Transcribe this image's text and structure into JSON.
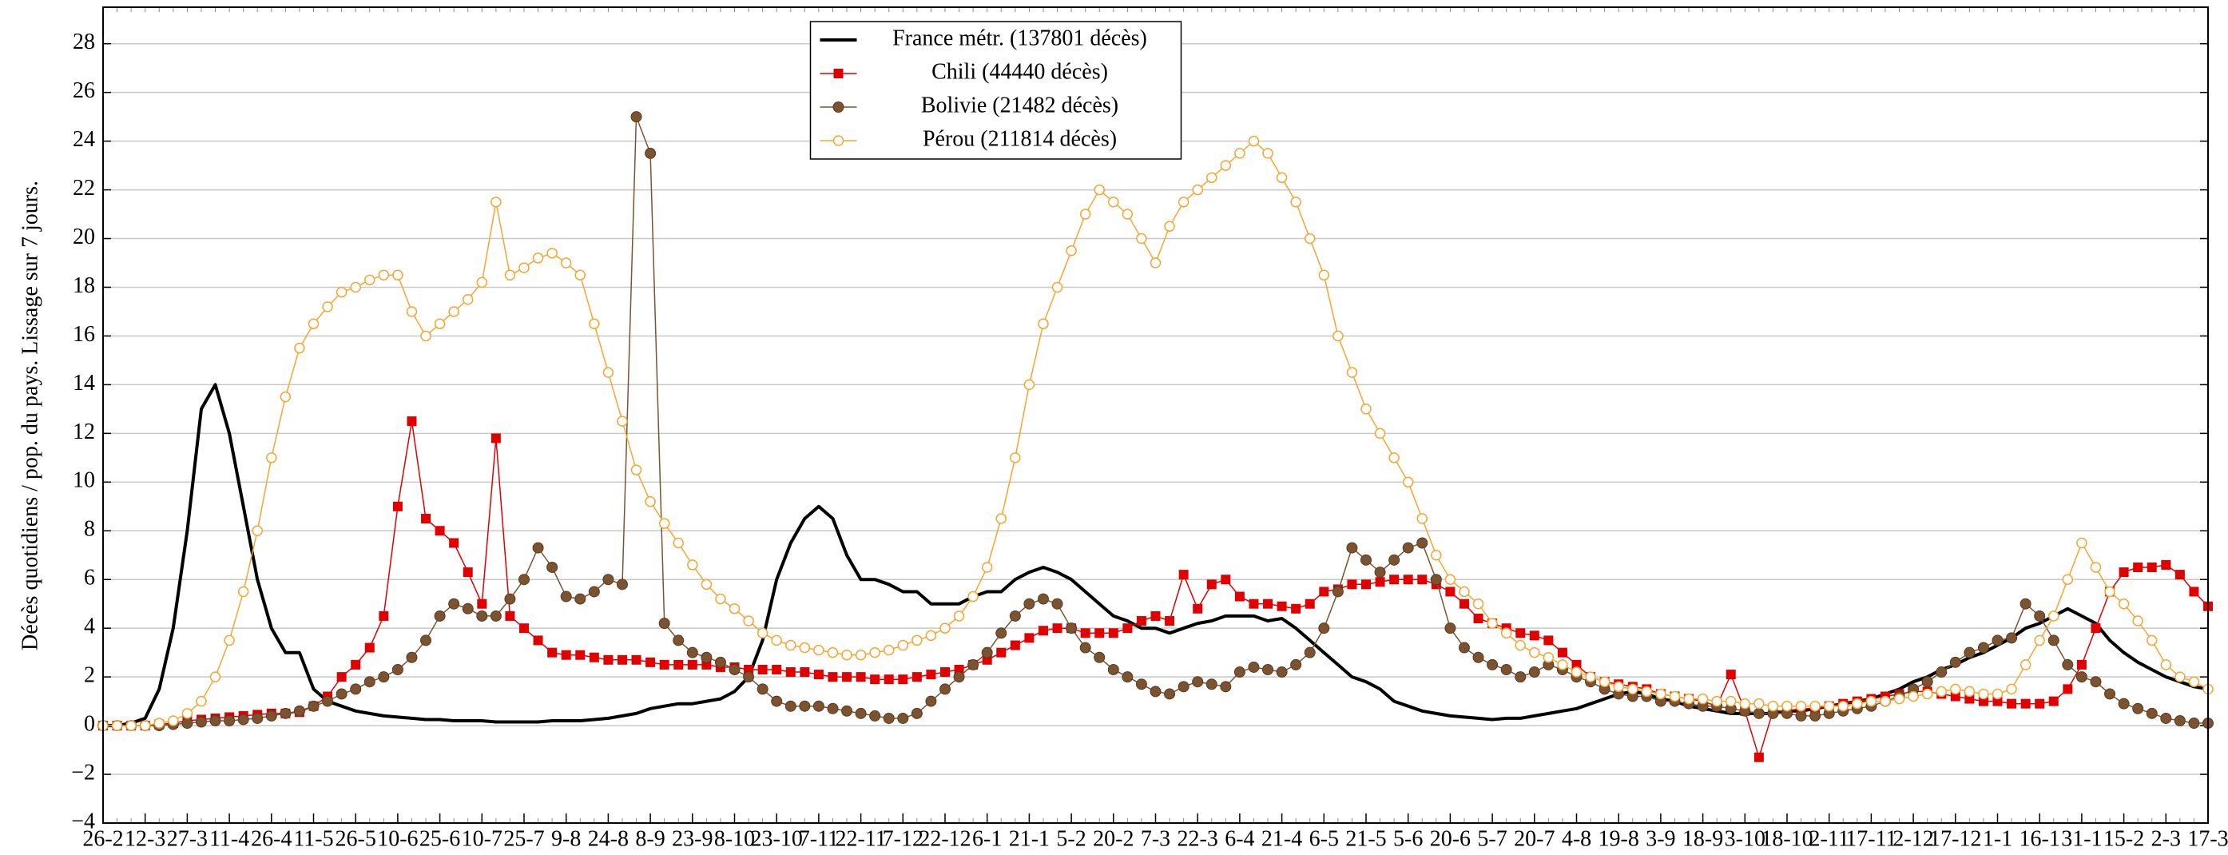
{
  "chart_data": {
    "type": "line",
    "y_label": "Décès quotidiens / pop. du pays. Lissage sur 7 jours.",
    "categories": [
      "26-2",
      null,
      null,
      "12-3",
      null,
      null,
      "27-3",
      null,
      null,
      "11-4",
      null,
      null,
      "26-4",
      null,
      null,
      "11-5",
      null,
      null,
      "26-5",
      null,
      null,
      "10-6",
      null,
      null,
      "25-6",
      null,
      null,
      "10-7",
      null,
      null,
      "25-7",
      null,
      null,
      "9-8",
      null,
      null,
      "24-8",
      null,
      null,
      "8-9",
      null,
      null,
      "23-9",
      null,
      null,
      "8-10",
      null,
      null,
      "23-10",
      null,
      null,
      "7-11",
      null,
      null,
      "22-11",
      null,
      null,
      "7-12",
      null,
      null,
      "22-12",
      null,
      null,
      "6-1",
      null,
      null,
      "21-1",
      null,
      null,
      "5-2",
      null,
      null,
      "20-2",
      null,
      null,
      "7-3",
      null,
      null,
      "22-3",
      null,
      null,
      "6-4",
      null,
      null,
      "21-4",
      null,
      null,
      "6-5",
      null,
      null,
      "21-5",
      null,
      null,
      "5-6",
      null,
      null,
      "20-6",
      null,
      null,
      "5-7",
      null,
      null,
      "20-7",
      null,
      null,
      "4-8",
      null,
      null,
      "19-8",
      null,
      null,
      "3-9",
      null,
      null,
      "18-9",
      null,
      null,
      "3-10",
      null,
      null,
      "18-10",
      null,
      null,
      "2-11",
      null,
      null,
      "17-11",
      null,
      null,
      "2-12",
      null,
      null,
      "17-12",
      null,
      null,
      "1-1",
      null,
      null,
      "16-1",
      null,
      null,
      "31-1",
      null,
      null,
      "15-2",
      null,
      null,
      "2-3",
      null,
      null,
      "17-3"
    ],
    "series": [
      {
        "name": "France métr. (137801 décès)",
        "color": "#000000",
        "marker": "none",
        "line_width": 4,
        "values": [
          0,
          0,
          0.1,
          0.3,
          1.5,
          4,
          8,
          13,
          14,
          12,
          9,
          6,
          4,
          3,
          3,
          1.5,
          1,
          0.8,
          0.6,
          0.5,
          0.4,
          0.35,
          0.3,
          0.25,
          0.25,
          0.2,
          0.2,
          0.2,
          0.15,
          0.15,
          0.15,
          0.15,
          0.2,
          0.2,
          0.2,
          0.25,
          0.3,
          0.4,
          0.5,
          0.7,
          0.8,
          0.9,
          0.9,
          1.0,
          1.1,
          1.4,
          2.0,
          3.5,
          6,
          7.5,
          8.5,
          9,
          8.5,
          7,
          6,
          6,
          5.8,
          5.5,
          5.5,
          5,
          5,
          5,
          5.3,
          5.5,
          5.5,
          6,
          6.3,
          6.5,
          6.3,
          6,
          5.5,
          5,
          4.5,
          4.3,
          4,
          4,
          3.8,
          4,
          4.2,
          4.3,
          4.5,
          4.5,
          4.5,
          4.3,
          4.4,
          4,
          3.5,
          3,
          2.5,
          2,
          1.8,
          1.5,
          1.0,
          0.8,
          0.6,
          0.5,
          0.4,
          0.35,
          0.3,
          0.25,
          0.3,
          0.3,
          0.4,
          0.5,
          0.6,
          0.7,
          0.9,
          1.1,
          1.3,
          1.4,
          1.3,
          1.1,
          1.0,
          0.8,
          0.7,
          0.6,
          0.5,
          0.5,
          0.5,
          0.5,
          0.6,
          0.6,
          0.7,
          0.8,
          0.9,
          1.0,
          1.1,
          1.3,
          1.5,
          1.8,
          2.0,
          2.3,
          2.5,
          2.8,
          3.0,
          3.3,
          3.6,
          4,
          4.2,
          4.5,
          4.8,
          4.5,
          4.2,
          3.5,
          3.0,
          2.6,
          2.3,
          2.0,
          1.8,
          1.6,
          1.5
        ]
      },
      {
        "name": "Chili (44440 décès)",
        "color": "#e00000",
        "marker": "square",
        "line_width": 1.5,
        "values": [
          0,
          0,
          0,
          0,
          0.05,
          0.1,
          0.2,
          0.25,
          0.3,
          0.35,
          0.4,
          0.45,
          0.5,
          0.5,
          0.55,
          0.8,
          1.2,
          2.0,
          2.5,
          3.2,
          4.5,
          9,
          12.5,
          8.5,
          8,
          7.5,
          6.3,
          5,
          11.8,
          4.5,
          4,
          3.5,
          3,
          2.9,
          2.9,
          2.8,
          2.7,
          2.7,
          2.7,
          2.6,
          2.5,
          2.5,
          2.5,
          2.5,
          2.4,
          2.4,
          2.3,
          2.3,
          2.3,
          2.2,
          2.2,
          2.1,
          2.0,
          2.0,
          2.0,
          1.9,
          1.9,
          1.9,
          2.0,
          2.1,
          2.2,
          2.3,
          2.5,
          2.7,
          3.0,
          3.3,
          3.6,
          3.9,
          4.0,
          4.0,
          3.8,
          3.8,
          3.8,
          4.0,
          4.3,
          4.5,
          4.3,
          6.2,
          4.8,
          5.8,
          6.0,
          5.3,
          5.0,
          5.0,
          4.9,
          4.8,
          5.0,
          5.5,
          5.6,
          5.8,
          5.8,
          5.9,
          6.0,
          6.0,
          6.0,
          5.8,
          5.5,
          5.0,
          4.4,
          4.2,
          4.0,
          3.8,
          3.7,
          3.5,
          3.0,
          2.5,
          2.0,
          1.8,
          1.7,
          1.6,
          1.5,
          1.3,
          1.2,
          1.1,
          1.0,
          0.8,
          2.1,
          0.6,
          -1.3,
          0.6,
          0.6,
          0.7,
          0.7,
          0.8,
          0.9,
          1.0,
          1.1,
          1.2,
          1.3,
          1.4,
          1.4,
          1.3,
          1.2,
          1.1,
          1.0,
          1.0,
          0.9,
          0.9,
          0.9,
          1.0,
          1.5,
          2.5,
          4,
          5.5,
          6.3,
          6.5,
          6.5,
          6.6,
          6.2,
          5.5,
          4.9
        ]
      },
      {
        "name": "Bolivie (21482 décès)",
        "color": "#7b5330",
        "marker": "circle",
        "line_width": 1.5,
        "values": [
          0,
          0,
          0,
          0,
          0,
          0.05,
          0.1,
          0.15,
          0.2,
          0.2,
          0.25,
          0.3,
          0.4,
          0.5,
          0.6,
          0.8,
          1.0,
          1.3,
          1.5,
          1.8,
          2.0,
          2.3,
          2.8,
          3.5,
          4.5,
          5.0,
          4.8,
          4.5,
          4.5,
          5.2,
          6.0,
          7.3,
          6.5,
          5.3,
          5.2,
          5.5,
          6.0,
          5.8,
          25.0,
          23.5,
          4.2,
          3.5,
          3.0,
          2.8,
          2.6,
          2.3,
          2.0,
          1.5,
          1.0,
          0.8,
          0.8,
          0.8,
          0.7,
          0.6,
          0.5,
          0.4,
          0.3,
          0.3,
          0.5,
          1.0,
          1.5,
          2.0,
          2.5,
          3.0,
          3.8,
          4.5,
          5.0,
          5.2,
          5.0,
          4.0,
          3.2,
          2.8,
          2.3,
          2.0,
          1.7,
          1.4,
          1.3,
          1.6,
          1.8,
          1.7,
          1.6,
          2.2,
          2.4,
          2.3,
          2.2,
          2.5,
          3.0,
          4.0,
          5.5,
          7.3,
          6.8,
          6.3,
          6.8,
          7.3,
          7.5,
          6.0,
          4.0,
          3.2,
          2.8,
          2.5,
          2.3,
          2.0,
          2.2,
          2.5,
          2.3,
          2.0,
          1.8,
          1.5,
          1.3,
          1.2,
          1.2,
          1.0,
          1.0,
          0.9,
          0.8,
          0.8,
          0.7,
          0.6,
          0.5,
          0.5,
          0.5,
          0.4,
          0.4,
          0.5,
          0.6,
          0.7,
          0.8,
          1.0,
          1.2,
          1.5,
          1.8,
          2.2,
          2.6,
          3.0,
          3.2,
          3.5,
          3.6,
          5.0,
          4.5,
          3.5,
          2.5,
          2.0,
          1.8,
          1.3,
          0.9,
          0.7,
          0.5,
          0.3,
          0.2,
          0.1,
          0.1
        ]
      },
      {
        "name": "Pérou (211814 décès)",
        "color": "#f7a531",
        "marker": "circle-open",
        "line_width": 1.5,
        "values": [
          0,
          0,
          0,
          0,
          0.1,
          0.2,
          0.5,
          1.0,
          2.0,
          3.5,
          5.5,
          8,
          11,
          13.5,
          15.5,
          16.5,
          17.2,
          17.8,
          18,
          18.3,
          18.5,
          18.5,
          17,
          16,
          16.5,
          17,
          17.5,
          18.2,
          21.5,
          18.5,
          18.8,
          19.2,
          19.4,
          19.0,
          18.5,
          16.5,
          14.5,
          12.5,
          10.5,
          9.2,
          8.3,
          7.5,
          6.6,
          5.8,
          5.2,
          4.8,
          4.3,
          3.8,
          3.5,
          3.3,
          3.2,
          3.1,
          3.0,
          2.9,
          2.9,
          3.0,
          3.1,
          3.3,
          3.5,
          3.7,
          4.0,
          4.5,
          5.3,
          6.5,
          8.5,
          11,
          14,
          16.5,
          18,
          19.5,
          21,
          22,
          21.5,
          21,
          20,
          19,
          20.5,
          21.5,
          22,
          22.5,
          23,
          23.5,
          24,
          23.5,
          22.5,
          21.5,
          20,
          18.5,
          16,
          14.5,
          13,
          12,
          11,
          10,
          8.5,
          7,
          6,
          5.5,
          5,
          4.2,
          3.8,
          3.3,
          3.0,
          2.8,
          2.5,
          2.2,
          2.0,
          1.8,
          1.6,
          1.5,
          1.4,
          1.3,
          1.2,
          1.1,
          1.1,
          1.0,
          1.0,
          0.9,
          0.9,
          0.8,
          0.8,
          0.8,
          0.8,
          0.8,
          0.8,
          0.9,
          1.0,
          1.0,
          1.1,
          1.2,
          1.3,
          1.4,
          1.5,
          1.4,
          1.3,
          1.3,
          1.5,
          2.5,
          3.5,
          4.5,
          6.0,
          7.5,
          6.5,
          5.5,
          5.0,
          4.3,
          3.5,
          2.5,
          2.0,
          1.8,
          1.5
        ]
      }
    ],
    "ylim": [
      -4,
      29.5
    ],
    "yticks": [
      {
        "value": -4,
        "label": "−4"
      },
      {
        "value": -2,
        "label": "−2"
      },
      0,
      2,
      4,
      6,
      8,
      10,
      12,
      14,
      16,
      18,
      20,
      22,
      24,
      26,
      28
    ],
    "grid": true,
    "legend_position": "upper center"
  }
}
